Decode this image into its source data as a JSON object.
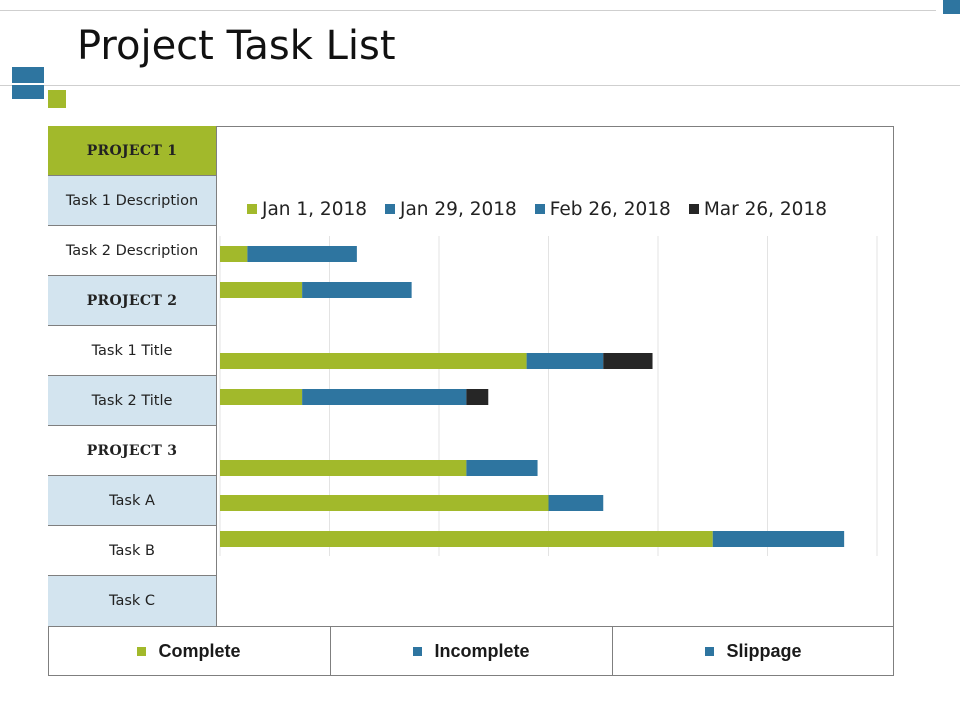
{
  "title": "Project Task List",
  "rows": [
    {
      "label": "PROJECT 1",
      "kind": "project",
      "bg": "green"
    },
    {
      "label": "Task 1 Description",
      "kind": "task",
      "bg": "light"
    },
    {
      "label": "Task 2 Description",
      "kind": "task",
      "bg": "white"
    },
    {
      "label": "PROJECT 2",
      "kind": "project",
      "bg": "light"
    },
    {
      "label": "Task 1 Title",
      "kind": "task",
      "bg": "white"
    },
    {
      "label": "Task 2 Title",
      "kind": "task",
      "bg": "light"
    },
    {
      "label": "PROJECT 3",
      "kind": "project",
      "bg": "white"
    },
    {
      "label": "Task A",
      "kind": "task",
      "bg": "light"
    },
    {
      "label": "Task B",
      "kind": "task",
      "bg": "white"
    },
    {
      "label": "Task C",
      "kind": "task",
      "bg": "light"
    }
  ],
  "footer": {
    "complete": "Complete",
    "incomplete": "Incomplete",
    "slippage": "Slippage"
  },
  "colors": {
    "green": "#a2b92b",
    "blue": "#2e75a0",
    "dark": "#262626",
    "light_row": "#d3e4ef"
  },
  "chart_data": {
    "type": "bar",
    "orientation": "horizontal",
    "stacked": true,
    "series": [
      {
        "name": "Jan 1, 2018",
        "color": "#a2b92b",
        "values": [
          5,
          15,
          56,
          15,
          45,
          60,
          90
        ]
      },
      {
        "name": "Jan 29, 2018",
        "color": "#2e75a0",
        "values": [
          20,
          20,
          14,
          30,
          13,
          10,
          24
        ]
      },
      {
        "name": "Feb 26, 2018",
        "color": "#2e75a0",
        "values": [
          0,
          0,
          0,
          0,
          0,
          0,
          0
        ]
      },
      {
        "name": "Mar 26, 2018",
        "color": "#262626",
        "values": [
          0,
          0,
          9,
          4,
          0,
          0,
          0
        ]
      }
    ],
    "xlim": [
      0,
      120
    ],
    "grid": true,
    "legend": "top"
  }
}
